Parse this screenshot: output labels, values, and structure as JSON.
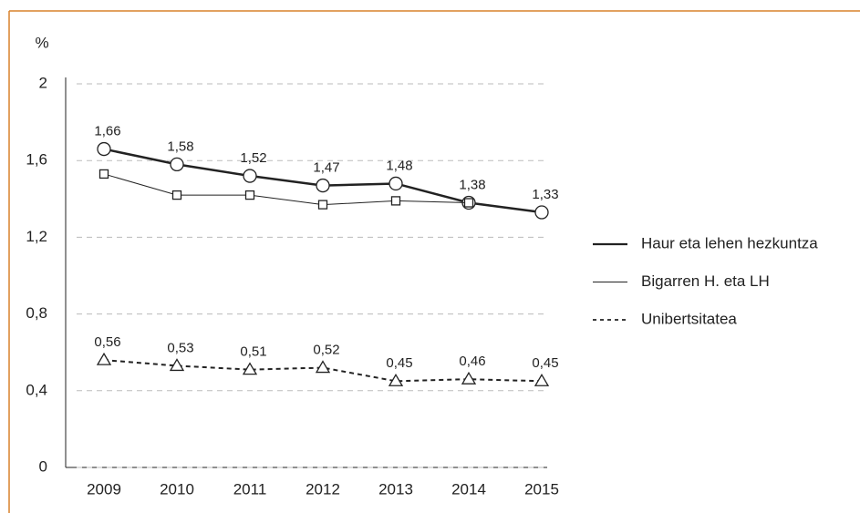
{
  "chart_data": {
    "type": "line",
    "y_label": "%",
    "categories": [
      "2009",
      "2010",
      "2011",
      "2012",
      "2013",
      "2014",
      "2015"
    ],
    "series": [
      {
        "name": "Haur eta lehen hezkuntza",
        "color": "#222222",
        "linewidth": 2.5,
        "dash": false,
        "marker": "circle",
        "values": [
          1.66,
          1.58,
          1.52,
          1.47,
          1.48,
          1.38,
          1.33
        ],
        "value_labels": [
          "1,66",
          "1,58",
          "1,52",
          "1,47",
          "1,48",
          "1,38",
          "1,33"
        ]
      },
      {
        "name": "Bigarren H. eta LH",
        "color": "#222222",
        "linewidth": 1,
        "dash": false,
        "marker": "square",
        "values": [
          1.53,
          1.42,
          1.42,
          1.37,
          1.39,
          1.38,
          null
        ]
      },
      {
        "name": "Unibertsitatea",
        "color": "#222222",
        "linewidth": 2,
        "dash": true,
        "marker": "triangle",
        "values": [
          0.56,
          0.53,
          0.51,
          0.52,
          0.45,
          0.46,
          0.45
        ],
        "value_labels": [
          "0,56",
          "0,53",
          "0,51",
          "0,52",
          "0,45",
          "0,46",
          "0,45"
        ]
      }
    ],
    "ylim": [
      0,
      2
    ],
    "yticks": [
      0,
      {
        "value": 0.4,
        "label": "0,4"
      },
      {
        "value": 0.8,
        "label": "0,8"
      },
      {
        "value": 1.2,
        "label": "1,2"
      },
      {
        "value": 1.6,
        "label": "1,6"
      },
      2
    ],
    "grid": true,
    "legend": "right"
  }
}
